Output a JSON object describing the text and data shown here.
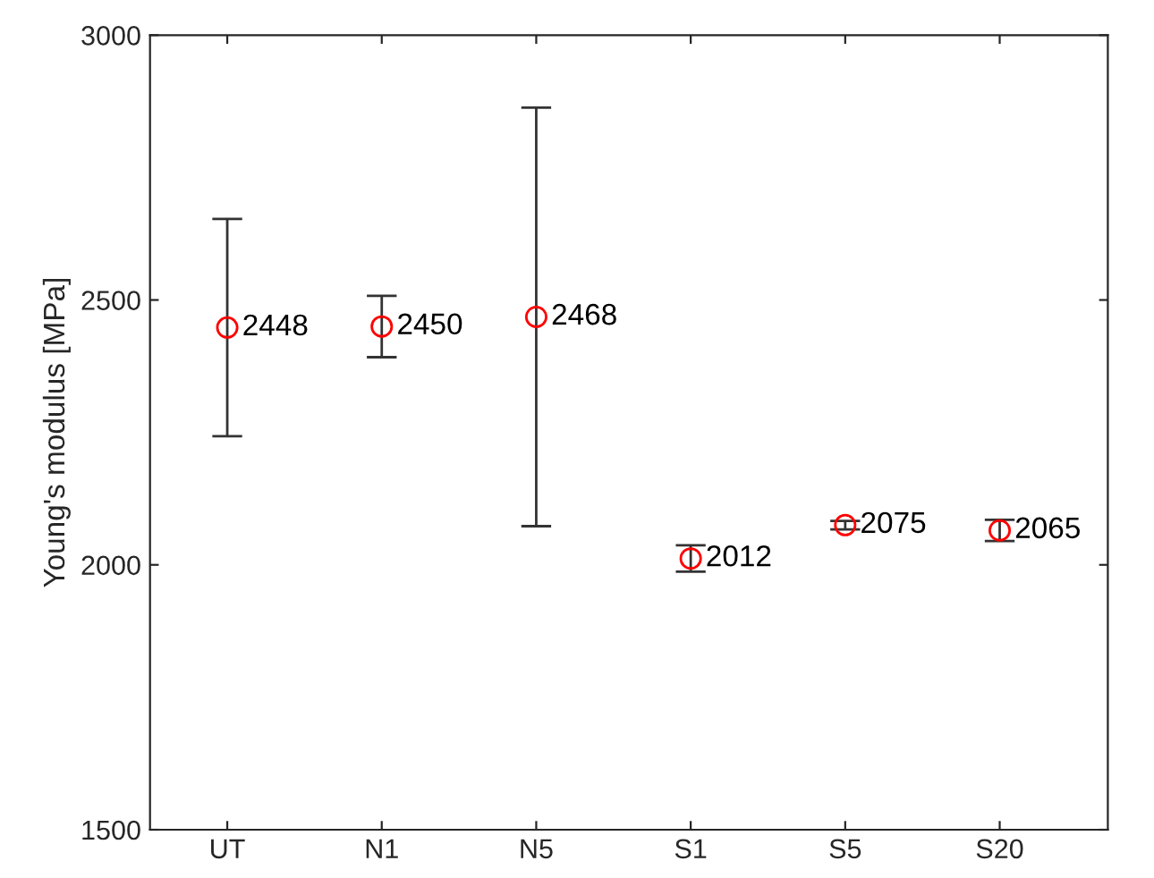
{
  "chart_data": {
    "type": "scatter",
    "ylabel": "Young's modulus [MPa]",
    "categories": [
      "UT",
      "N1",
      "N5",
      "S1",
      "S5",
      "S20"
    ],
    "series": [
      {
        "color": "#ff0000",
        "values": [
          2448,
          2450,
          2468,
          2012,
          2075,
          2065
        ],
        "errors": [
          205,
          58,
          395,
          25,
          8,
          20
        ]
      }
    ],
    "ylim": [
      1500,
      3000
    ],
    "yticks": [
      1500,
      2000,
      2500,
      3000
    ],
    "marker": "circle",
    "data_labels": true,
    "grid": false
  }
}
